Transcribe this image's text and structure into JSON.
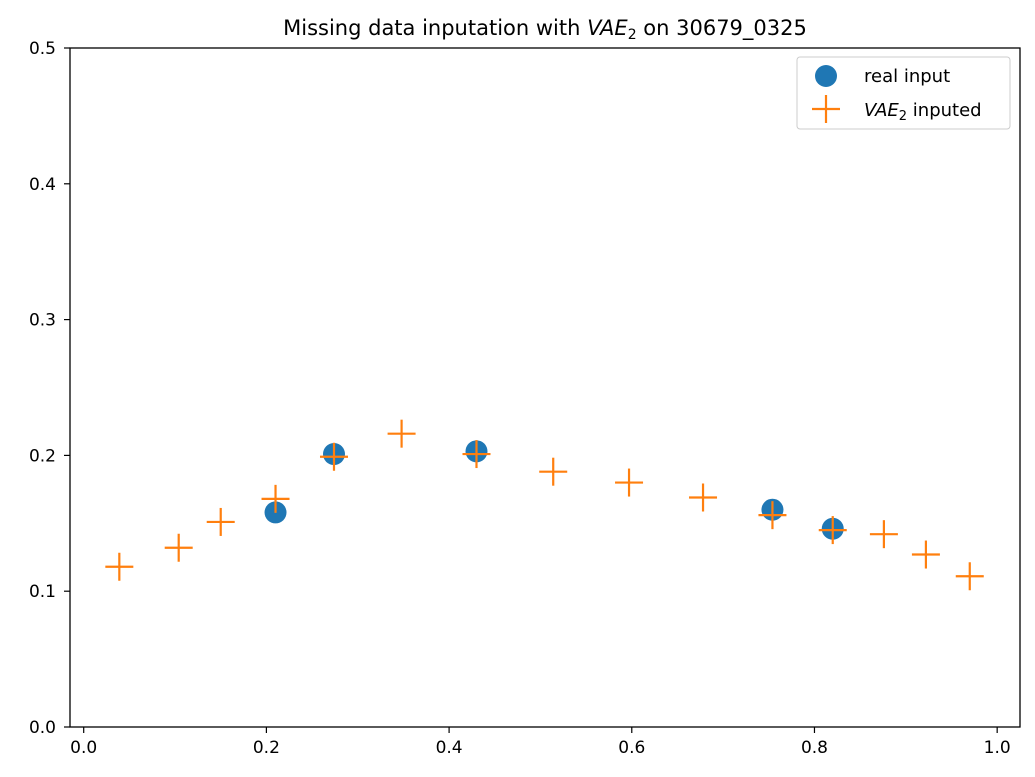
{
  "chart_data": {
    "type": "scatter",
    "title": {
      "prefix": "Missing data inputation with ",
      "var": "VAE",
      "sub": "2",
      "suffix": " on 30679_0325"
    },
    "xlim": [
      -0.015,
      1.025
    ],
    "ylim": [
      0.0,
      0.5
    ],
    "x_ticks": [
      {
        "value": 0.0,
        "label": "0.0"
      },
      {
        "value": 0.2,
        "label": "0.2"
      },
      {
        "value": 0.4,
        "label": "0.4"
      },
      {
        "value": 0.6,
        "label": "0.6"
      },
      {
        "value": 0.8,
        "label": "0.8"
      },
      {
        "value": 1.0,
        "label": "1.0"
      }
    ],
    "y_ticks": [
      {
        "value": 0.0,
        "label": "0.0"
      },
      {
        "value": 0.1,
        "label": "0.1"
      },
      {
        "value": 0.2,
        "label": "0.2"
      },
      {
        "value": 0.3,
        "label": "0.3"
      },
      {
        "value": 0.4,
        "label": "0.4"
      },
      {
        "value": 0.5,
        "label": "0.5"
      }
    ],
    "grid": false,
    "legend_placement": "top-right",
    "series": [
      {
        "name": "real input",
        "marker": "circle",
        "color": "#1f77b4",
        "x": [
          0.21,
          0.274,
          0.43,
          0.754,
          0.82
        ],
        "y": [
          0.158,
          0.201,
          0.203,
          0.16,
          0.146
        ]
      },
      {
        "name_var": "VAE",
        "name_sub": "2",
        "name_suffix": " inputed",
        "marker": "plus",
        "color": "#ff7f0e",
        "x": [
          0.039,
          0.104,
          0.15,
          0.21,
          0.274,
          0.348,
          0.43,
          0.514,
          0.597,
          0.678,
          0.754,
          0.82,
          0.876,
          0.922,
          0.97
        ],
        "y": [
          0.118,
          0.132,
          0.151,
          0.168,
          0.199,
          0.216,
          0.201,
          0.188,
          0.18,
          0.169,
          0.156,
          0.145,
          0.142,
          0.127,
          0.111
        ]
      }
    ]
  }
}
